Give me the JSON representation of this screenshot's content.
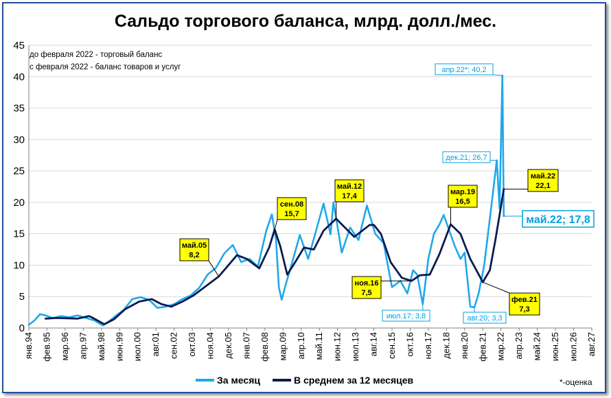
{
  "chart_data": {
    "type": "line",
    "title": "Сальдо торгового баланса, млрд. долл./мес.",
    "notes": [
      "до февраля 2022 - торговый баланс",
      "с февраля 2022 - баланс товаров и услуг"
    ],
    "footnote": "*-оценка",
    "ylim": [
      0,
      45
    ],
    "yticks": [
      0,
      5,
      10,
      15,
      20,
      25,
      30,
      35,
      40,
      45
    ],
    "x_start": "янв.94",
    "x_tick_labels": [
      "янв.94",
      "фев.95",
      "мар.96",
      "апр.97",
      "май.98",
      "июн.99",
      "июл.00",
      "авг.01",
      "сен.02",
      "окт.03",
      "ноя.04",
      "дек.05",
      "янв.07",
      "фев.08",
      "мар.09",
      "апр.10",
      "май.11",
      "июн.12",
      "июл.13",
      "авг.14",
      "сен.15",
      "окт.16",
      "ноя.17",
      "дек.18",
      "янв.20",
      "фев.21",
      "мар.22",
      "апр.23",
      "май.24",
      "июн.25",
      "июл.26",
      "авг.27"
    ],
    "legend": {
      "position": "bottom"
    },
    "colors": {
      "monthly": "#1fa8e8",
      "average": "#0d1a4e",
      "callout_fill": "#ffff00",
      "callout_text_blue": "#00a0e0",
      "frame": "#1f4e9a"
    },
    "series": [
      {
        "name": "За месяц",
        "keypoints": [
          [
            "янв.94",
            0.5
          ],
          [
            "май.94",
            1.2
          ],
          [
            "сен.94",
            2.2
          ],
          [
            "янв.95",
            2.0
          ],
          [
            "июн.95",
            1.6
          ],
          [
            "дек.95",
            1.9
          ],
          [
            "июн.96",
            1.7
          ],
          [
            "дек.96",
            2.0
          ],
          [
            "июн.97",
            1.6
          ],
          [
            "дек.97",
            1.2
          ],
          [
            "июн.98",
            0.4
          ],
          [
            "окт.98",
            1.0
          ],
          [
            "мар.99",
            1.9
          ],
          [
            "сен.99",
            2.9
          ],
          [
            "мар.00",
            4.6
          ],
          [
            "сен.00",
            4.9
          ],
          [
            "мар.01",
            4.5
          ],
          [
            "сен.01",
            3.2
          ],
          [
            "мар.02",
            3.4
          ],
          [
            "сен.02",
            3.8
          ],
          [
            "мар.03",
            4.6
          ],
          [
            "сен.03",
            5.2
          ],
          [
            "мар.04",
            6.4
          ],
          [
            "сен.04",
            8.5
          ],
          [
            "мар.05",
            9.6
          ],
          [
            "сен.05",
            11.9
          ],
          [
            "мар.06",
            13.2
          ],
          [
            "сен.06",
            10.5
          ],
          [
            "мар.07",
            11.0
          ],
          [
            "сен.07",
            9.8
          ],
          [
            "мар.08",
            15.5
          ],
          [
            "июл.08",
            18.1
          ],
          [
            "окт.08",
            14.0
          ],
          [
            "дек.08",
            6.5
          ],
          [
            "фев.09",
            4.5
          ],
          [
            "май.09",
            7.0
          ],
          [
            "сен.09",
            10.0
          ],
          [
            "мар.10",
            14.8
          ],
          [
            "сен.10",
            11.0
          ],
          [
            "мар.11",
            15.8
          ],
          [
            "авг.11",
            19.8
          ],
          [
            "янв.12",
            14.9
          ],
          [
            "мар.12",
            20.0
          ],
          [
            "май.12",
            17.5
          ],
          [
            "сен.12",
            12.0
          ],
          [
            "мар.13",
            16.0
          ],
          [
            "сен.13",
            14.0
          ],
          [
            "мар.14",
            19.5
          ],
          [
            "сен.14",
            15.0
          ],
          [
            "мар.15",
            13.5
          ],
          [
            "сен.15",
            6.5
          ],
          [
            "мар.16",
            7.5
          ],
          [
            "авг.16",
            5.5
          ],
          [
            "дек.16",
            9.2
          ],
          [
            "мар.17",
            8.5
          ],
          [
            "июл.17",
            3.8
          ],
          [
            "ноя.17",
            11.0
          ],
          [
            "мар.18",
            15.0
          ],
          [
            "июл.18",
            16.5
          ],
          [
            "окт.18",
            18.0
          ],
          [
            "фев.19",
            15.5
          ],
          [
            "июн.19",
            13.0
          ],
          [
            "окт.19",
            11.0
          ],
          [
            "янв.20",
            12.0
          ],
          [
            "май.20",
            3.4
          ],
          [
            "авг.20",
            3.3
          ],
          [
            "ноя.20",
            5.5
          ],
          [
            "мар.21",
            10.0
          ],
          [
            "июн.21",
            15.5
          ],
          [
            "сен.21",
            21.0
          ],
          [
            "дек.21",
            26.7
          ],
          [
            "фев.22",
            19.0
          ],
          [
            "апр.22",
            40.2
          ],
          [
            "май.22",
            17.8
          ]
        ]
      },
      {
        "name": "В среднем за 12 месяцев",
        "keypoints": [
          [
            "янв.95",
            1.5
          ],
          [
            "сен.95",
            1.6
          ],
          [
            "дек.96",
            1.5
          ],
          [
            "авг.97",
            1.9
          ],
          [
            "окт.97",
            1.7
          ],
          [
            "июл.98",
            0.6
          ],
          [
            "фев.99",
            1.4
          ],
          [
            "окт.99",
            3.0
          ],
          [
            "авг.00",
            4.2
          ],
          [
            "май.01",
            4.6
          ],
          [
            "дек.01",
            3.8
          ],
          [
            "июл.02",
            3.4
          ],
          [
            "мар.03",
            4.2
          ],
          [
            "ноя.03",
            5.2
          ],
          [
            "май.05",
            8.2
          ],
          [
            "июн.06",
            11.6
          ],
          [
            "янв.07",
            11.0
          ],
          [
            "окт.07",
            9.5
          ],
          [
            "май.08",
            12.8
          ],
          [
            "сен.08",
            15.7
          ],
          [
            "янв.09",
            13.0
          ],
          [
            "июн.09",
            8.5
          ],
          [
            "дек.09",
            10.6
          ],
          [
            "июн.10",
            12.8
          ],
          [
            "янв.11",
            12.5
          ],
          [
            "авг.11",
            15.5
          ],
          [
            "май.12",
            17.4
          ],
          [
            "июн.13",
            14.5
          ],
          [
            "май.14",
            16.4
          ],
          [
            "авг.14",
            16.4
          ],
          [
            "янв.15",
            15.0
          ],
          [
            "авг.15",
            10.5
          ],
          [
            "апр.16",
            8.0
          ],
          [
            "ноя.16",
            7.5
          ],
          [
            "май.17",
            8.4
          ],
          [
            "дек.17",
            8.5
          ],
          [
            "июл.18",
            11.8
          ],
          [
            "мар.19",
            16.5
          ],
          [
            "окт.19",
            15.0
          ],
          [
            "май.20",
            11.0
          ],
          [
            "фев.21",
            7.3
          ],
          [
            "июл.21",
            9.2
          ],
          [
            "ноя.21",
            14.0
          ],
          [
            "фев.22",
            18.0
          ],
          [
            "май.22",
            22.1
          ]
        ]
      }
    ],
    "callouts": [
      {
        "style": "yellow",
        "lines": [
          "май.05",
          "8,2"
        ]
      },
      {
        "style": "yellow",
        "lines": [
          "сен.08",
          "15,7"
        ]
      },
      {
        "style": "yellow",
        "lines": [
          "май.12",
          "17,4"
        ]
      },
      {
        "style": "yellow",
        "lines": [
          "ноя.16",
          "7,5"
        ]
      },
      {
        "style": "yellow",
        "lines": [
          "мар.19",
          "16,5"
        ]
      },
      {
        "style": "yellow",
        "lines": [
          "май.22",
          "22,1"
        ]
      },
      {
        "style": "yellow",
        "lines": [
          "фев.21",
          "7,3"
        ]
      },
      {
        "style": "blue",
        "lines": [
          "апр.22*; 40,2"
        ]
      },
      {
        "style": "blue",
        "lines": [
          "дек.21; 26,7"
        ]
      },
      {
        "style": "blue",
        "lines": [
          "июл.17; 3,8"
        ]
      },
      {
        "style": "blue",
        "lines": [
          "авг.20; 3,3"
        ]
      },
      {
        "style": "big",
        "lines": [
          "май.22; 17,8"
        ]
      }
    ]
  }
}
